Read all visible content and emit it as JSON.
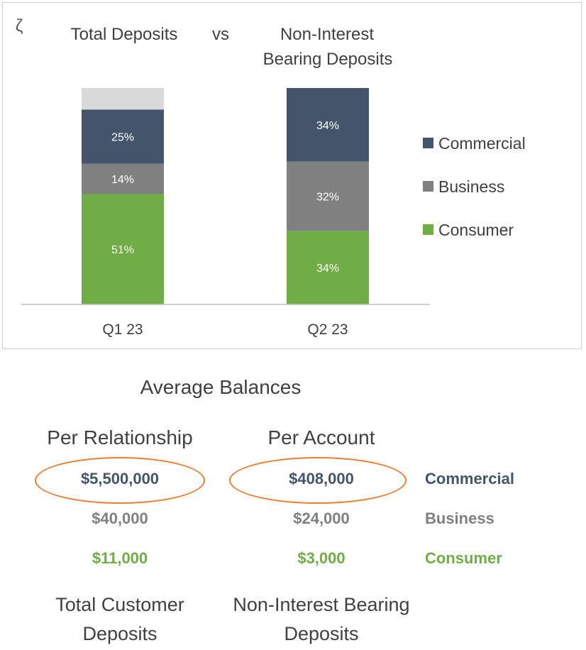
{
  "colors": {
    "commercial": "#44546a",
    "business": "#808080",
    "consumer": "#70ad47",
    "other": "#d9d9d9",
    "highlight": "#ed7d31",
    "text": "#404040"
  },
  "chart_data": {
    "type": "bar",
    "stacked": true,
    "corner_glyph": "ζ",
    "titles": [
      "Total Deposits",
      "vs",
      "Non-Interest",
      "Bearing Deposits"
    ],
    "categories": [
      "Q1 23",
      "Q2 23"
    ],
    "series": [
      {
        "name": "Consumer",
        "values": [
          51,
          34
        ],
        "labels": [
          "51%",
          "34%"
        ],
        "color": "#70ad47"
      },
      {
        "name": "Business",
        "values": [
          14,
          32
        ],
        "labels": [
          "14%",
          "32%"
        ],
        "color": "#808080"
      },
      {
        "name": "Commercial",
        "values": [
          25,
          34
        ],
        "labels": [
          "25%",
          "34%"
        ],
        "color": "#44546a"
      },
      {
        "name": "",
        "values": [
          10,
          0
        ],
        "labels": [
          "",
          ""
        ],
        "color": "#d9d9d9"
      }
    ],
    "legend": [
      "Commercial",
      "Business",
      "Consumer"
    ],
    "legend_position": "right",
    "ylim": [
      0,
      100
    ],
    "grid": false
  },
  "balances": {
    "title": "Average Balances",
    "col1_header": "Per Relationship",
    "col2_header": "Per Account",
    "rows": [
      {
        "segment": "Commercial",
        "per_relationship": "$5,500,000",
        "per_account": "$408,000"
      },
      {
        "segment": "Business",
        "per_relationship": "$40,000",
        "per_account": "$24,000"
      },
      {
        "segment": "Consumer",
        "per_relationship": "$11,000",
        "per_account": "$3,000"
      }
    ],
    "footer_left": [
      "Total Customer",
      "Deposits"
    ],
    "footer_right": [
      "Non-Interest Bearing",
      "Deposits"
    ]
  }
}
